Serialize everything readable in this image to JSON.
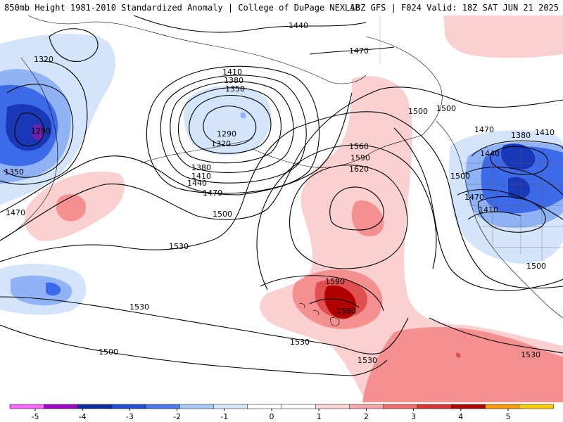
{
  "header": {
    "title_left": "850mb Height 1981-2010 Standardized Anomaly | College of DuPage NEXLAB",
    "title_right": "18Z GFS | F024 Valid: 18Z SAT JUN 21 2025"
  },
  "contour_labels": [
    "1440",
    "1470",
    "1320",
    "1290",
    "1410",
    "1380",
    "1350",
    "1290",
    "1320",
    "1380",
    "1410",
    "1440",
    "1470",
    "1500",
    "1350",
    "1470",
    "1530",
    "1560",
    "1590",
    "1620",
    "1500",
    "1470",
    "1380",
    "1410",
    "1440",
    "1500",
    "1470",
    "1410",
    "1500",
    "1530",
    "1590",
    "1560",
    "1530",
    "1530",
    "1500",
    "1530",
    "1500"
  ],
  "colorbar": {
    "ticks": [
      "-5",
      "-4",
      "-3",
      "-2",
      "-1",
      "0",
      "1",
      "2",
      "3",
      "4",
      "5"
    ],
    "colors": [
      "#ff66ff",
      "#a000c8",
      "#0a2fa0",
      "#1f4fd6",
      "#4a78f0",
      "#a9c8f5",
      "#d8e8fb",
      "#ffffff",
      "#ffffff",
      "#fcd6d6",
      "#f7a7a7",
      "#f06b6b",
      "#d93333",
      "#b00000",
      "#ff9900",
      "#ffcc00"
    ]
  },
  "anomaly_colors": {
    "neg1": "#d4e4fb",
    "neg2": "#8fb3f5",
    "neg3": "#3d6ae8",
    "neg4": "#1838b8",
    "neg5": "#7020a8",
    "pos1": "#fbd0d0",
    "pos2": "#f59090",
    "pos3": "#e05050",
    "pos4": "#b00000"
  }
}
